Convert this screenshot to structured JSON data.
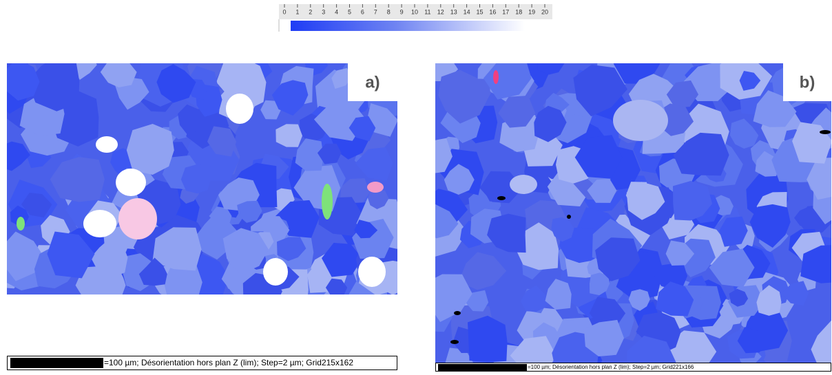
{
  "color_scale": {
    "lim": [
      0,
      20
    ],
    "ticks": [
      0,
      1,
      2,
      3,
      4,
      5,
      6,
      7,
      8,
      9,
      10,
      11,
      12,
      13,
      14,
      15,
      16,
      17,
      18,
      19,
      20
    ]
  },
  "panels": [
    {
      "label": "a)",
      "caption": "=100 µm; Désorientation hors plan Z (lim); Step=2 µm; Grid215x162"
    },
    {
      "label": "b)",
      "caption": "=100 µm; Désorientation hors plan Z (lim); Step=2 µm; Grid221x166"
    }
  ]
}
